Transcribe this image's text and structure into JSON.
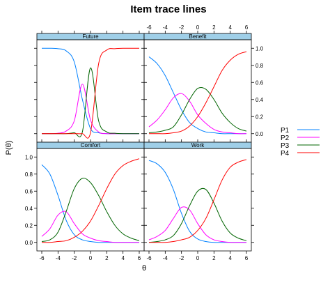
{
  "chart_data": {
    "type": "line",
    "title": "Item trace lines",
    "xlabel": "θ",
    "ylabel": "P(θ)",
    "xlim": [
      -6.6,
      6.6
    ],
    "ylim": [
      -0.1,
      1.1
    ],
    "x_ticks": [
      -6,
      -4,
      -2,
      0,
      2,
      4,
      6
    ],
    "y_ticks": [
      0.0,
      0.2,
      0.4,
      0.6,
      0.8,
      1.0
    ],
    "x_tick_labels": [
      "-6",
      "-4",
      "-2",
      "0",
      "2",
      "4",
      "6"
    ],
    "y_tick_labels": [
      "0.0",
      "0.2",
      "0.4",
      "0.6",
      "0.8",
      "1.0"
    ],
    "legend": {
      "position": "right",
      "entries": [
        {
          "name": "P1",
          "color": "#0080ff"
        },
        {
          "name": "P2",
          "color": "#ff00ff"
        },
        {
          "name": "P3",
          "color": "#006400"
        },
        {
          "name": "P4",
          "color": "#ff0000"
        }
      ]
    },
    "x": [
      -6,
      -5,
      -4,
      -3,
      -2,
      -1,
      0,
      1,
      2,
      3,
      4,
      5,
      6
    ],
    "panels": [
      {
        "title": "Future",
        "series": [
          {
            "name": "P1",
            "values": [
              1.0,
              1.0,
              0.995,
              0.97,
              0.84,
              0.4,
              0.06,
              0.01,
              0.0,
              0.0,
              0.0,
              0.0,
              0.0
            ]
          },
          {
            "name": "P2",
            "values": [
              0.0,
              0.0,
              0.005,
              0.03,
              0.15,
              0.58,
              0.16,
              0.02,
              0.0,
              0.0,
              0.0,
              0.0,
              0.0
            ]
          },
          {
            "name": "P3",
            "values": [
              0.0,
              0.0,
              0.0,
              0.0,
              0.01,
              0.02,
              0.77,
              0.15,
              0.02,
              0.005,
              0.0,
              0.0,
              0.0
            ]
          },
          {
            "name": "P4",
            "values": [
              0.0,
              0.0,
              0.0,
              0.0,
              0.0,
              0.0,
              0.01,
              0.82,
              0.98,
              0.995,
              1.0,
              1.0,
              1.0
            ]
          }
        ]
      },
      {
        "title": "Benefit",
        "series": [
          {
            "name": "P1",
            "values": [
              0.9,
              0.82,
              0.68,
              0.48,
              0.28,
              0.13,
              0.06,
              0.02,
              0.01,
              0.0,
              0.0,
              0.0,
              0.0
            ]
          },
          {
            "name": "P2",
            "values": [
              0.08,
              0.16,
              0.28,
              0.42,
              0.47,
              0.38,
              0.22,
              0.12,
              0.05,
              0.02,
              0.01,
              0.0,
              0.0
            ]
          },
          {
            "name": "P3",
            "values": [
              0.01,
              0.02,
              0.04,
              0.08,
              0.22,
              0.4,
              0.53,
              0.52,
              0.4,
              0.24,
              0.13,
              0.06,
              0.03
            ]
          },
          {
            "name": "P4",
            "values": [
              0.0,
              0.0,
              0.0,
              0.01,
              0.03,
              0.09,
              0.2,
              0.36,
              0.55,
              0.74,
              0.86,
              0.93,
              0.96
            ]
          }
        ]
      },
      {
        "title": "Comfort",
        "series": [
          {
            "name": "P1",
            "values": [
              0.91,
              0.8,
              0.55,
              0.26,
              0.09,
              0.03,
              0.01,
              0.0,
              0.0,
              0.0,
              0.0,
              0.0,
              0.0
            ]
          },
          {
            "name": "P2",
            "values": [
              0.07,
              0.16,
              0.32,
              0.36,
              0.22,
              0.1,
              0.05,
              0.02,
              0.01,
              0.0,
              0.0,
              0.0,
              0.0
            ]
          },
          {
            "name": "P3",
            "values": [
              0.01,
              0.03,
              0.12,
              0.36,
              0.63,
              0.75,
              0.7,
              0.55,
              0.36,
              0.2,
              0.1,
              0.05,
              0.02
            ]
          },
          {
            "name": "P4",
            "values": [
              0.0,
              0.0,
              0.01,
              0.02,
              0.06,
              0.13,
              0.25,
              0.43,
              0.63,
              0.8,
              0.9,
              0.95,
              0.98
            ]
          }
        ]
      },
      {
        "title": "Work",
        "series": [
          {
            "name": "P1",
            "values": [
              0.96,
              0.92,
              0.82,
              0.62,
              0.34,
              0.13,
              0.04,
              0.01,
              0.0,
              0.0,
              0.0,
              0.0,
              0.0
            ]
          },
          {
            "name": "P2",
            "values": [
              0.03,
              0.07,
              0.14,
              0.28,
              0.41,
              0.38,
              0.22,
              0.09,
              0.03,
              0.01,
              0.0,
              0.0,
              0.0
            ]
          },
          {
            "name": "P3",
            "values": [
              0.0,
              0.01,
              0.03,
              0.08,
              0.22,
              0.43,
              0.6,
              0.62,
              0.46,
              0.25,
              0.11,
              0.05,
              0.02
            ]
          },
          {
            "name": "P4",
            "values": [
              0.0,
              0.0,
              0.0,
              0.01,
              0.03,
              0.06,
              0.14,
              0.28,
              0.5,
              0.73,
              0.88,
              0.94,
              0.97
            ]
          }
        ]
      }
    ]
  }
}
